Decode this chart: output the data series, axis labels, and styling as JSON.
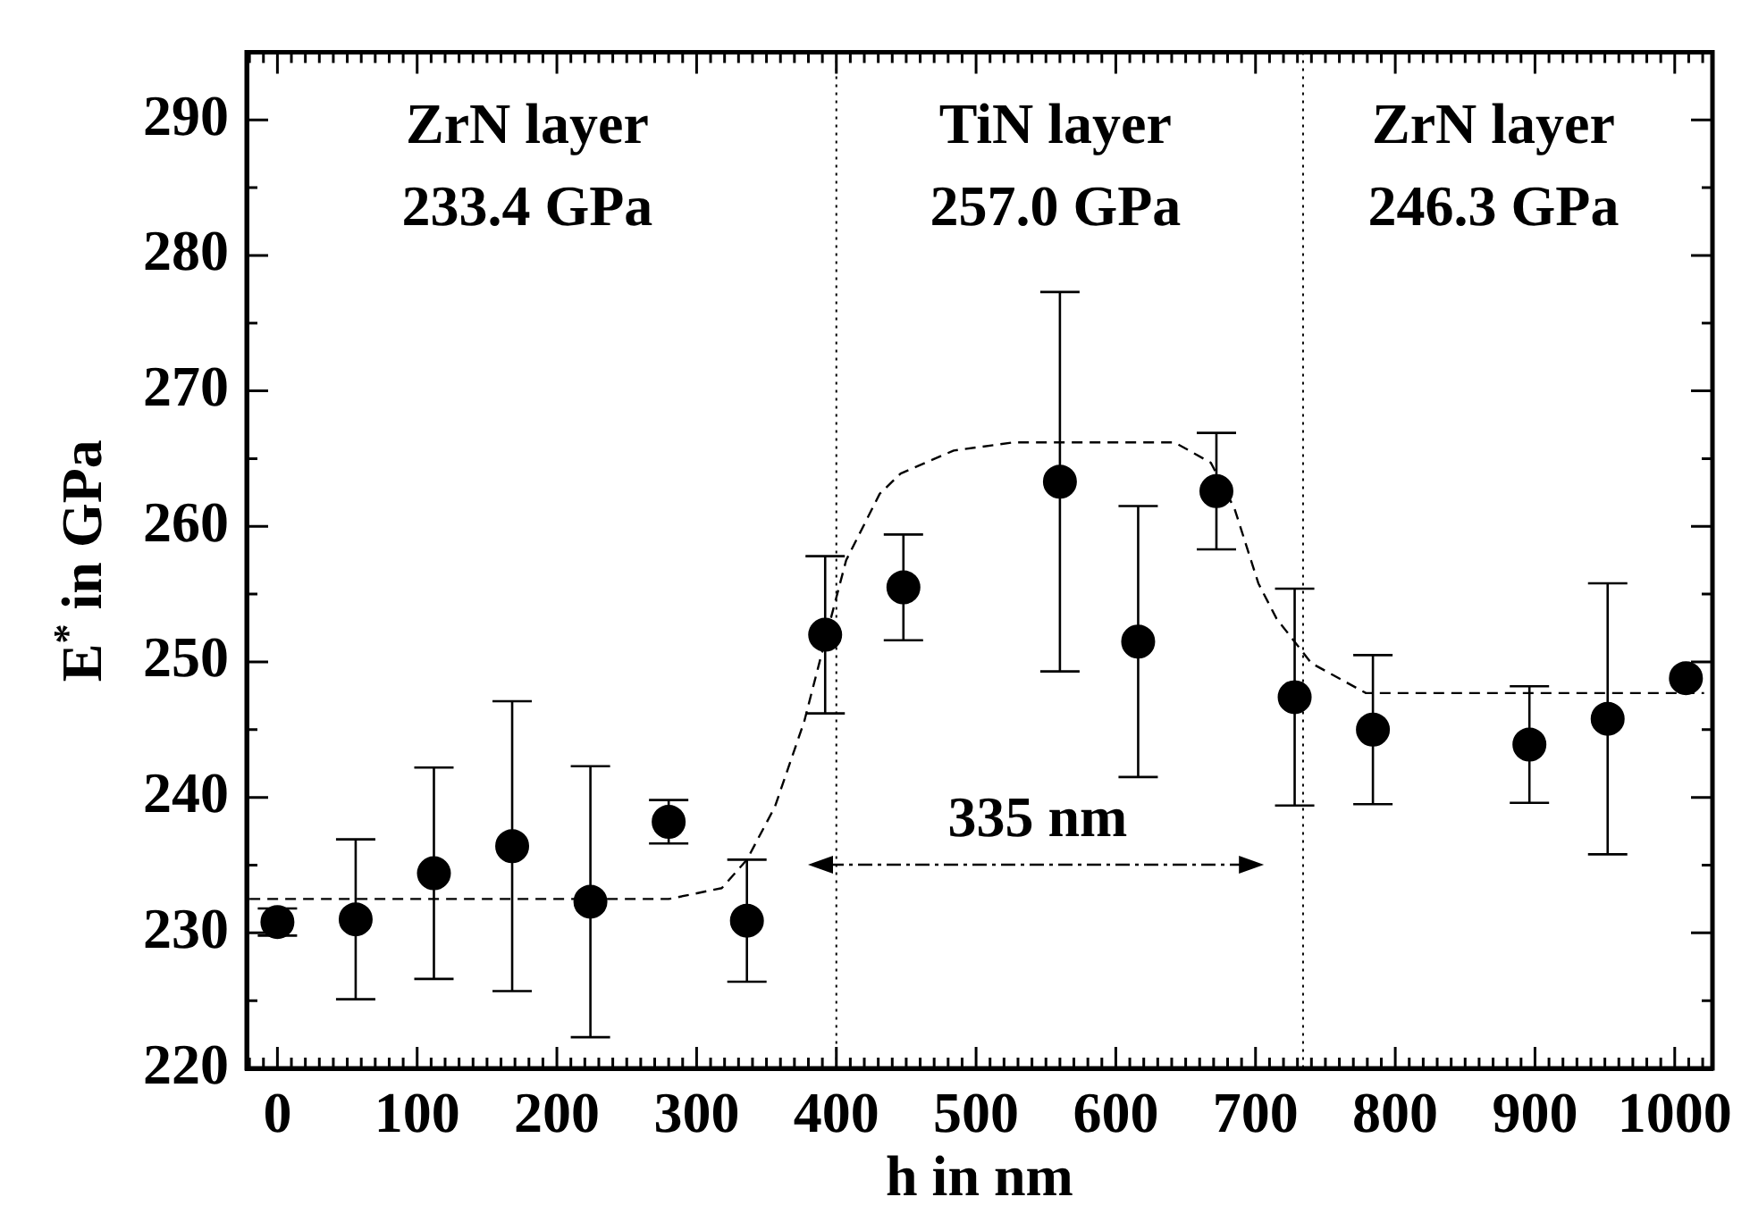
{
  "chart_data": {
    "type": "scatter",
    "xlabel": "h in nm",
    "ylabel": "E$^{*}$ in GPa",
    "xlim": [
      -22,
      1027
    ],
    "ylim": [
      220,
      295
    ],
    "xticks": [
      {
        "value": -20,
        "label": null
      },
      {
        "value": -10,
        "label": null
      },
      0,
      {
        "value": 10,
        "label": null
      },
      {
        "value": 20,
        "label": null
      },
      {
        "value": 30,
        "label": null
      },
      {
        "value": 40,
        "label": null
      },
      {
        "value": 50,
        "label": null
      },
      {
        "value": 60,
        "label": null
      },
      {
        "value": 70,
        "label": null
      },
      {
        "value": 80,
        "label": null
      },
      {
        "value": 90,
        "label": null
      },
      100,
      {
        "value": 110,
        "label": null
      },
      {
        "value": 120,
        "label": null
      },
      {
        "value": 130,
        "label": null
      },
      {
        "value": 140,
        "label": null
      },
      {
        "value": 150,
        "label": null
      },
      {
        "value": 160,
        "label": null
      },
      {
        "value": 170,
        "label": null
      },
      {
        "value": 180,
        "label": null
      },
      {
        "value": 190,
        "label": null
      },
      200,
      {
        "value": 210,
        "label": null
      },
      {
        "value": 220,
        "label": null
      },
      {
        "value": 230,
        "label": null
      },
      {
        "value": 240,
        "label": null
      },
      {
        "value": 250,
        "label": null
      },
      {
        "value": 260,
        "label": null
      },
      {
        "value": 270,
        "label": null
      },
      {
        "value": 280,
        "label": null
      },
      {
        "value": 290,
        "label": null
      },
      300,
      {
        "value": 310,
        "label": null
      },
      {
        "value": 320,
        "label": null
      },
      {
        "value": 330,
        "label": null
      },
      {
        "value": 340,
        "label": null
      },
      {
        "value": 350,
        "label": null
      },
      {
        "value": 360,
        "label": null
      },
      {
        "value": 370,
        "label": null
      },
      {
        "value": 380,
        "label": null
      },
      {
        "value": 390,
        "label": null
      },
      400,
      {
        "value": 410,
        "label": null
      },
      {
        "value": 420,
        "label": null
      },
      {
        "value": 430,
        "label": null
      },
      {
        "value": 440,
        "label": null
      },
      {
        "value": 450,
        "label": null
      },
      {
        "value": 460,
        "label": null
      },
      {
        "value": 470,
        "label": null
      },
      {
        "value": 480,
        "label": null
      },
      {
        "value": 490,
        "label": null
      },
      500,
      {
        "value": 510,
        "label": null
      },
      {
        "value": 520,
        "label": null
      },
      {
        "value": 530,
        "label": null
      },
      {
        "value": 540,
        "label": null
      },
      {
        "value": 550,
        "label": null
      },
      {
        "value": 560,
        "label": null
      },
      {
        "value": 570,
        "label": null
      },
      {
        "value": 580,
        "label": null
      },
      {
        "value": 590,
        "label": null
      },
      600,
      {
        "value": 610,
        "label": null
      },
      {
        "value": 620,
        "label": null
      },
      {
        "value": 630,
        "label": null
      },
      {
        "value": 640,
        "label": null
      },
      {
        "value": 650,
        "label": null
      },
      {
        "value": 660,
        "label": null
      },
      {
        "value": 670,
        "label": null
      },
      {
        "value": 680,
        "label": null
      },
      {
        "value": 690,
        "label": null
      },
      700,
      {
        "value": 710,
        "label": null
      },
      {
        "value": 720,
        "label": null
      },
      {
        "value": 730,
        "label": null
      },
      {
        "value": 740,
        "label": null
      },
      {
        "value": 750,
        "label": null
      },
      {
        "value": 760,
        "label": null
      },
      {
        "value": 770,
        "label": null
      },
      {
        "value": 780,
        "label": null
      },
      {
        "value": 790,
        "label": null
      },
      800,
      {
        "value": 810,
        "label": null
      },
      {
        "value": 820,
        "label": null
      },
      {
        "value": 830,
        "label": null
      },
      {
        "value": 840,
        "label": null
      },
      {
        "value": 850,
        "label": null
      },
      {
        "value": 860,
        "label": null
      },
      {
        "value": 870,
        "label": null
      },
      {
        "value": 880,
        "label": null
      },
      {
        "value": 890,
        "label": null
      },
      900,
      {
        "value": 910,
        "label": null
      },
      {
        "value": 920,
        "label": null
      },
      {
        "value": 930,
        "label": null
      },
      {
        "value": 940,
        "label": null
      },
      {
        "value": 950,
        "label": null
      },
      {
        "value": 960,
        "label": null
      },
      {
        "value": 970,
        "label": null
      },
      {
        "value": 980,
        "label": null
      },
      {
        "value": 990,
        "label": null
      },
      1000,
      {
        "value": 1010,
        "label": null
      },
      {
        "value": 1020,
        "label": null
      }
    ],
    "yticks": [
      220,
      {
        "value": 225,
        "label": null
      },
      230,
      {
        "value": 235,
        "label": null
      },
      240,
      {
        "value": 245,
        "label": null
      },
      250,
      {
        "value": 255,
        "label": null
      },
      260,
      {
        "value": 265,
        "label": null
      },
      270,
      {
        "value": 275,
        "label": null
      },
      280,
      {
        "value": 285,
        "label": null
      },
      290,
      {
        "value": 295,
        "label": null
      }
    ],
    "series": [
      {
        "type": "scatter",
        "color": "#000000",
        "marker": "circle",
        "x": [
          0,
          56,
          112,
          168,
          224,
          280,
          336,
          392,
          448,
          560,
          616,
          672,
          728,
          784,
          896,
          952,
          1008
        ],
        "values": [
          230.8,
          231.0,
          234.4,
          236.4,
          232.3,
          238.2,
          230.9,
          252.0,
          255.5,
          263.3,
          251.5,
          262.6,
          247.4,
          245.0,
          243.9,
          245.8,
          248.8
        ],
        "errors": [
          1.0,
          5.9,
          7.8,
          10.7,
          10.0,
          1.6,
          4.5,
          5.8,
          3.9,
          14.0,
          10.0,
          4.3,
          8.0,
          5.5,
          4.3,
          10.0,
          null
        ]
      },
      {
        "type": "line",
        "color": "#000000",
        "marker": "none",
        "line_style": "dashed",
        "x": [
          -20,
          280,
          318,
          336,
          356,
          377,
          394,
          407,
          431,
          446,
          484,
          527,
          642,
          668,
          685,
          702,
          715,
          740,
          779,
          1021
        ],
        "values": [
          232.5,
          232.5,
          233.3,
          235.4,
          239.3,
          245.6,
          252.4,
          257.5,
          262.4,
          263.9,
          265.6,
          266.2,
          266.2,
          264.7,
          261.3,
          255.8,
          253.2,
          249.9,
          247.7,
          247.7
        ]
      }
    ],
    "ref_lines": [
      {
        "axis": "x",
        "value": 400,
        "color": "#000000",
        "line_style": "dotted"
      },
      {
        "axis": "x",
        "value": 734,
        "color": "#000000",
        "line_style": "dotted"
      }
    ],
    "annotations": [
      "ZrN layer\n233.4 GPa",
      "TiN layer\n257.0 GPa",
      "ZrN layer\n246.3 GPa",
      "335 nm"
    ]
  }
}
